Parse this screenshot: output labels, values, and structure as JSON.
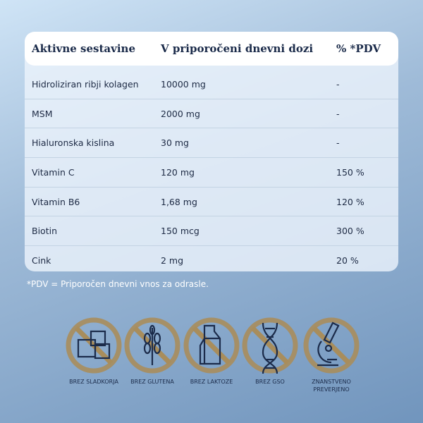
{
  "table": {
    "header": [
      "Aktivne sestavine",
      "V priporočeni dnevni dozi",
      "% *PDV"
    ],
    "rows": [
      [
        "Hidroliziran ribji kolagen",
        "10000 mg",
        "-"
      ],
      [
        "MSM",
        "2000 mg",
        "-"
      ],
      [
        "Hialuronska kislina",
        "30 mg",
        "-"
      ],
      [
        "Vitamin C",
        "120 mg",
        "150 %"
      ],
      [
        "Vitamin B6",
        "1,68 mg",
        "120 %"
      ],
      [
        "Biotin",
        "150 mcg",
        "300 %"
      ],
      [
        "Cink",
        "2 mg",
        "20 %"
      ]
    ]
  },
  "footnote": "*PDV = Priporočen dnevni vnos za odrasle.",
  "badges": [
    [
      "BREZ SLADKORJA"
    ],
    [
      "BREZ GLUTENA"
    ],
    [
      "BREZ LAKTOZE"
    ],
    [
      "BREZ GSO"
    ],
    [
      "ZNANSTVENO",
      "PREVERJENO"
    ]
  ]
}
